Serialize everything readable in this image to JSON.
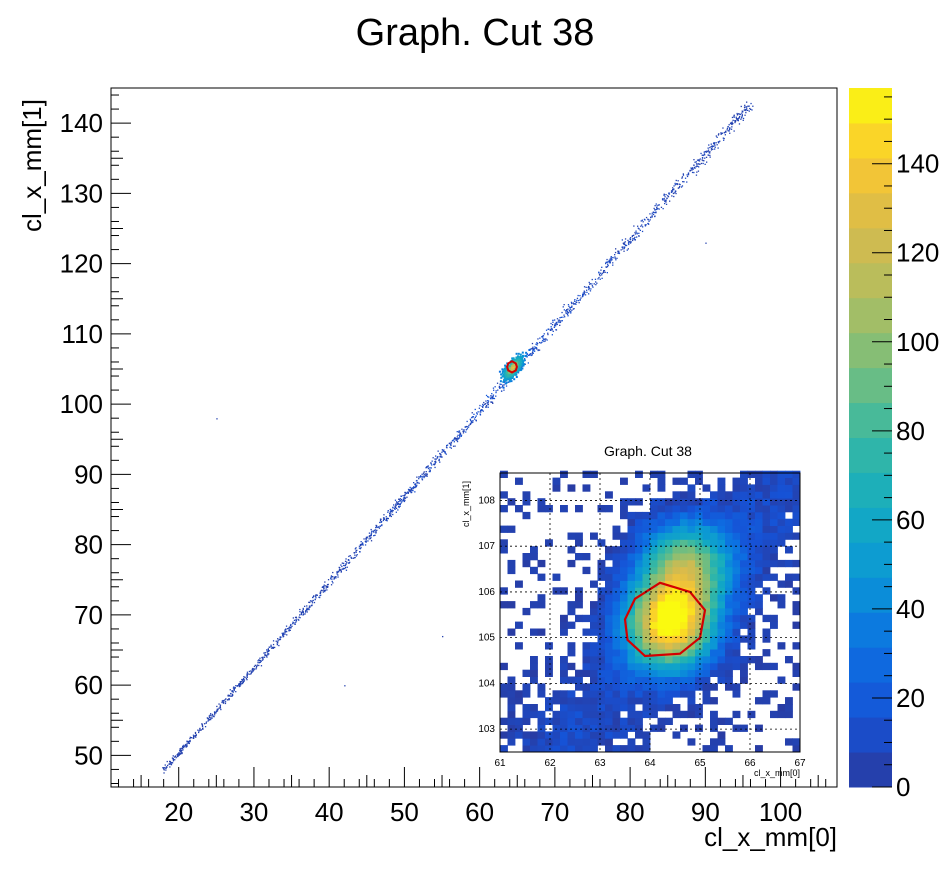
{
  "chart_data": [
    {
      "type": "heatmap",
      "title": "Graph. Cut 38",
      "xlabel": "cl_x_mm[0]",
      "ylabel": "cl_x_mm[1]",
      "xlim": [
        11,
        107.5
      ],
      "ylim": [
        45.5,
        145
      ],
      "xticks": [
        20,
        30,
        40,
        50,
        60,
        70,
        80,
        90,
        100
      ],
      "yticks": [
        50,
        60,
        70,
        80,
        90,
        100,
        110,
        120,
        130,
        140
      ],
      "grid": false,
      "colorbar": {
        "min": 0,
        "max": 157,
        "ticks": [
          0,
          20,
          40,
          60,
          80,
          100,
          120,
          140
        ]
      },
      "hotspot_center": [
        64.3,
        105.3
      ],
      "diagonal_band": {
        "from": [
          18,
          48
        ],
        "to": [
          96,
          143
        ]
      },
      "cut_contour": [
        [
          64.3,
          106.1
        ],
        [
          64.8,
          105.8
        ],
        [
          64.95,
          105.3
        ],
        [
          64.8,
          104.8
        ],
        [
          64.3,
          104.5
        ],
        [
          63.8,
          104.8
        ],
        [
          63.65,
          105.3
        ],
        [
          63.8,
          105.8
        ]
      ],
      "cut_color": "#d40000"
    },
    {
      "type": "heatmap",
      "title": "Graph. Cut 38",
      "xlabel": "cl_x_mm[0]",
      "ylabel": "cl_x_mm[1]",
      "xlim": [
        61,
        67
      ],
      "ylim": [
        102.5,
        108.6
      ],
      "xticks": [
        61,
        62,
        63,
        64,
        65,
        66,
        67
      ],
      "yticks": [
        103,
        104,
        105,
        106,
        107,
        108
      ],
      "grid": true,
      "peaks": [
        {
          "x": 64.4,
          "y": 105.3,
          "value": 150
        },
        {
          "x": 64.7,
          "y": 106.6,
          "value": 95
        }
      ],
      "cut_contour": [
        [
          64.2,
          106.2
        ],
        [
          64.8,
          106.0
        ],
        [
          65.1,
          105.6
        ],
        [
          65.0,
          105.0
        ],
        [
          64.6,
          104.65
        ],
        [
          63.9,
          104.6
        ],
        [
          63.55,
          104.95
        ],
        [
          63.5,
          105.4
        ],
        [
          63.7,
          105.85
        ]
      ],
      "cut_color": "#d40000"
    }
  ]
}
